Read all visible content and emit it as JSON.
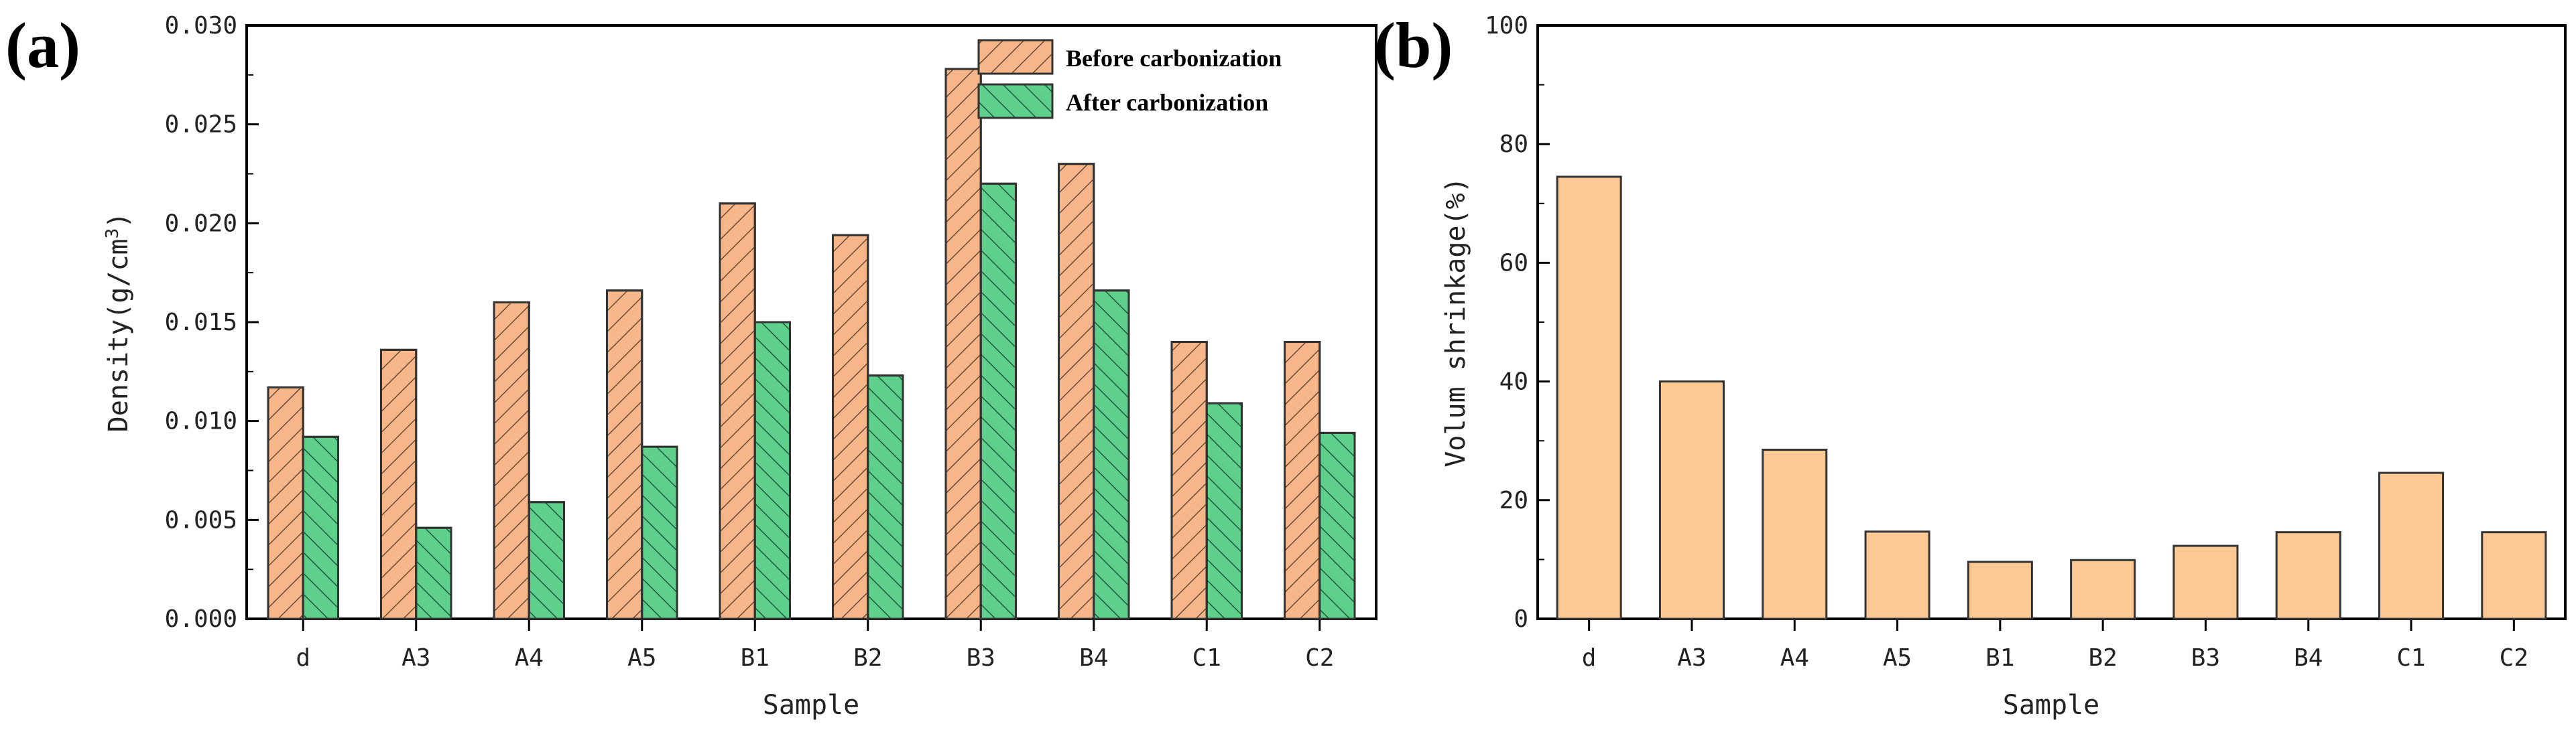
{
  "chart_data": [
    {
      "panel_label": "(a)",
      "type": "bar",
      "xlabel": "Sample",
      "ylabel": "Density(g/cm",
      "ylabel_sup": "3",
      "ylabel_close": ")",
      "ylim": [
        0,
        0.03
      ],
      "yticks": [
        "0.000",
        "0.005",
        "0.010",
        "0.015",
        "0.020",
        "0.025",
        "0.030"
      ],
      "categories": [
        "d",
        "A3",
        "A4",
        "A5",
        "B1",
        "B2",
        "B3",
        "B4",
        "C1",
        "C2"
      ],
      "series": [
        {
          "name": "Before carbonization",
          "color": "#f7b68a",
          "hatch": "//",
          "values": [
            0.0117,
            0.0136,
            0.016,
            0.0166,
            0.021,
            0.0194,
            0.0278,
            0.023,
            0.014,
            0.014
          ]
        },
        {
          "name": "After carbonization",
          "color": "#5fcf8c",
          "hatch": "\\\\",
          "values": [
            0.0092,
            0.0046,
            0.0059,
            0.0087,
            0.015,
            0.0123,
            0.022,
            0.0166,
            0.0109,
            0.0094
          ]
        }
      ],
      "legend": "top-right",
      "grid": false
    },
    {
      "panel_label": "(b)",
      "type": "bar",
      "xlabel": "Sample",
      "ylabel": "Volum shrinkage(%)",
      "ylim": [
        0,
        100
      ],
      "yticks": [
        "0",
        "20",
        "40",
        "60",
        "80",
        "100"
      ],
      "categories": [
        "d",
        "A3",
        "A4",
        "A5",
        "B1",
        "B2",
        "B3",
        "B4",
        "C1",
        "C2"
      ],
      "series": [
        {
          "color": "#fcc893",
          "values": [
            74.5,
            40.0,
            28.5,
            14.7,
            9.6,
            9.9,
            12.3,
            14.6,
            24.6,
            14.6
          ]
        }
      ],
      "grid": false
    }
  ]
}
